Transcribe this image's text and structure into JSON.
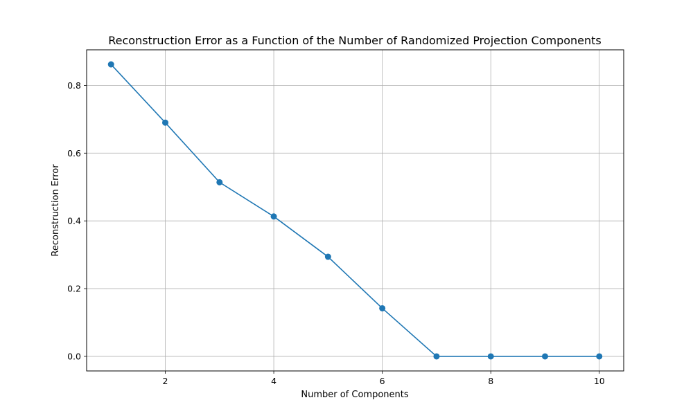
{
  "chart_data": {
    "type": "line",
    "title": "Reconstruction Error as a Function of the Number of Randomized Projection Components",
    "xlabel": "Number of Components",
    "ylabel": "Reconstruction Error",
    "x": [
      1,
      2,
      3,
      4,
      5,
      6,
      7,
      8,
      9,
      10
    ],
    "series": [
      {
        "values": [
          0.862,
          0.69,
          0.514,
          0.413,
          0.294,
          0.142,
          0.0,
          0.0,
          0.0,
          0.0
        ],
        "color": "#1f77b4",
        "marker": "circle"
      }
    ],
    "xlim": [
      0.55,
      10.45
    ],
    "ylim": [
      -0.043,
      0.905
    ],
    "xticks": [
      2,
      4,
      6,
      8,
      10
    ],
    "xtick_labels": [
      "2",
      "4",
      "6",
      "8",
      "10"
    ],
    "yticks": [
      0.0,
      0.2,
      0.4,
      0.6,
      0.8
    ],
    "ytick_labels": [
      "0.0",
      "0.2",
      "0.4",
      "0.6",
      "0.8"
    ],
    "grid": true,
    "grid_color": "#b0b0b0",
    "legend": "none"
  }
}
